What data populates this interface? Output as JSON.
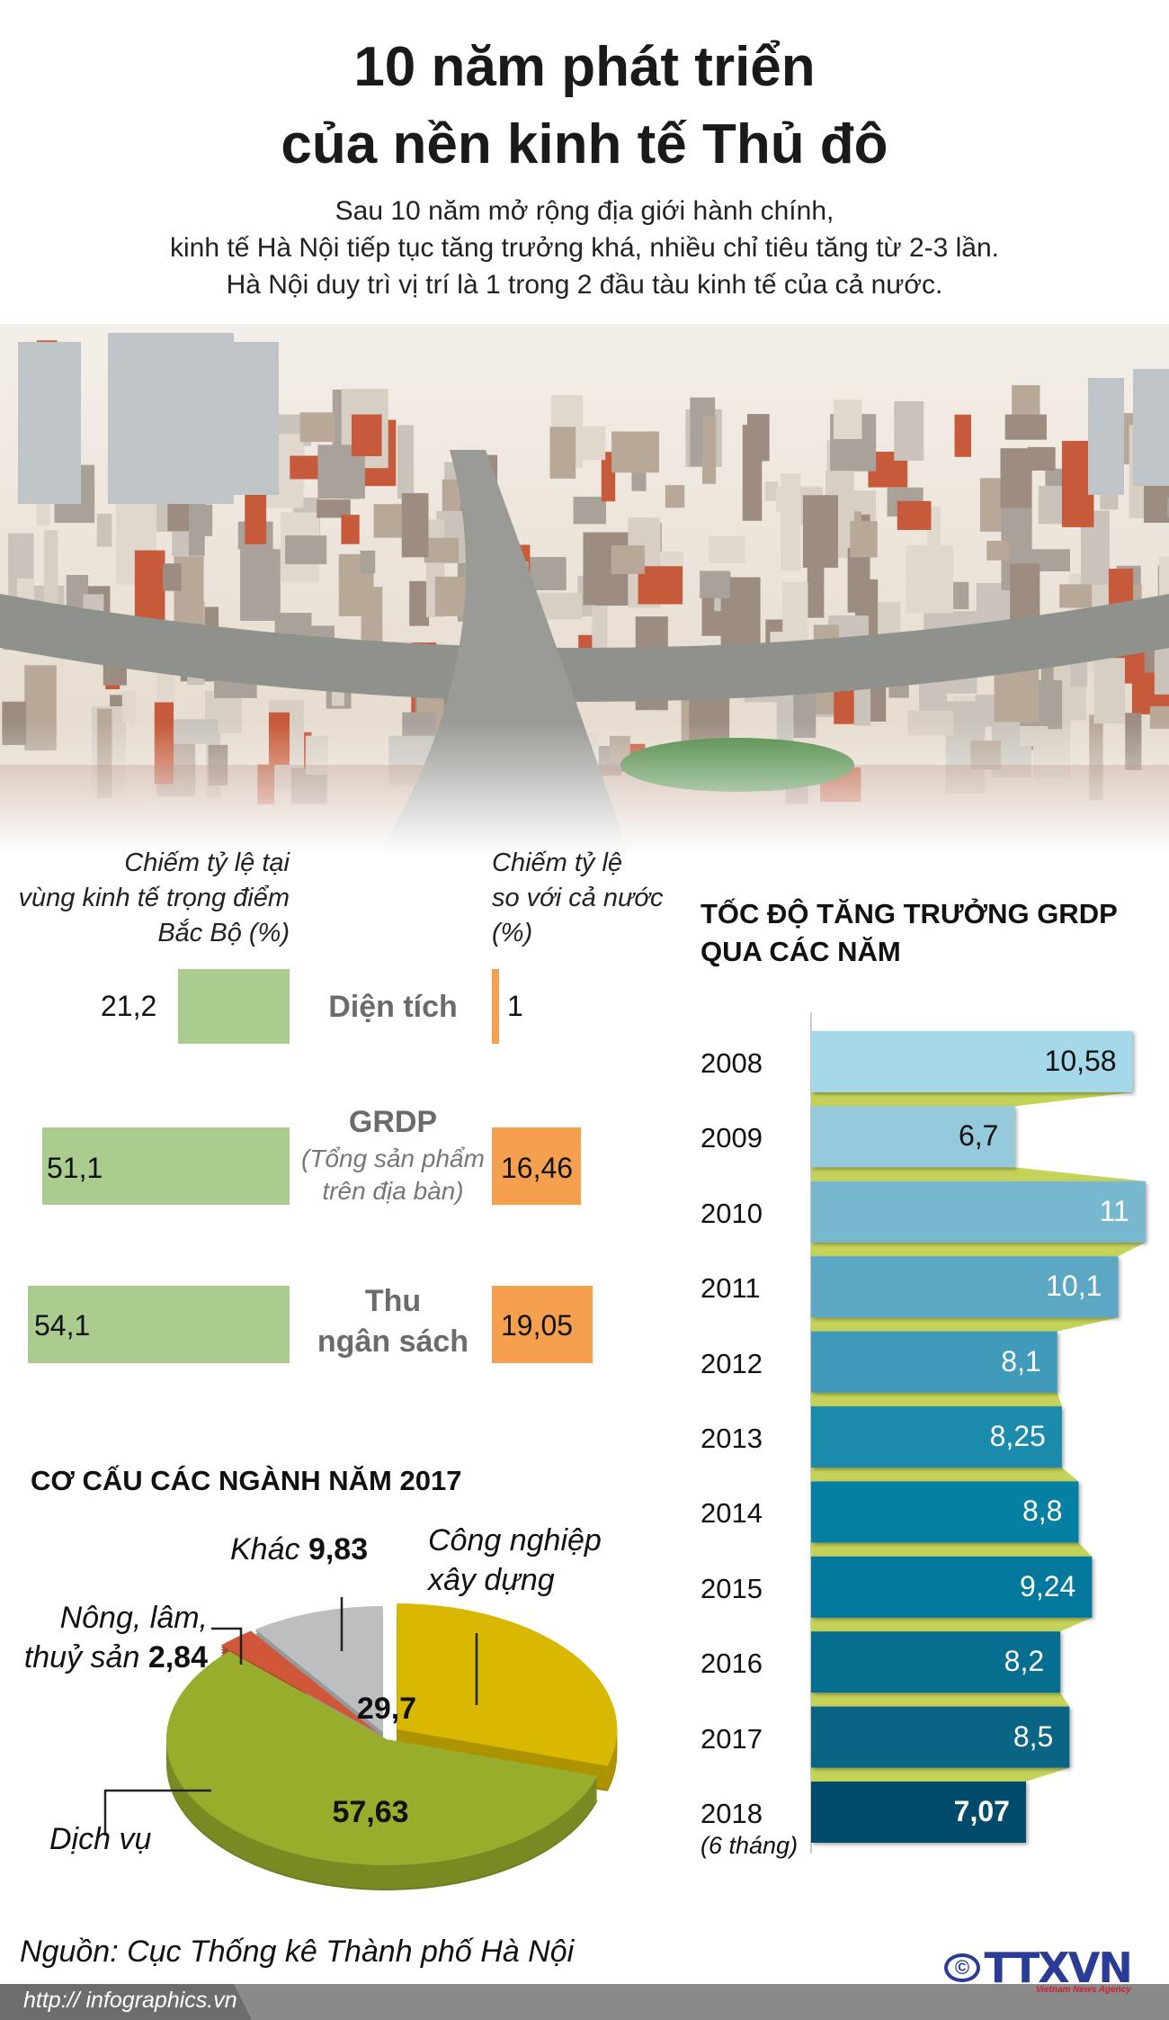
{
  "title": {
    "line1": "10 năm phát triển",
    "line2": "của nền kinh tế Thủ đô"
  },
  "subtitle": {
    "line1": "Sau 10 năm mở rộng địa giới hành chính,",
    "line2": "kinh tế Hà Nội tiếp tục tăng trưởng khá, nhiều chỉ tiêu tăng từ 2-3 lần.",
    "line3": "Hà Nội duy trì vị trí là 1 trong 2 đầu tàu kinh tế của cả nước."
  },
  "comparison": {
    "left_header": [
      "Chiếm tỷ lệ tại",
      "vùng kinh tế trọng điểm",
      "Bắc Bộ (%)"
    ],
    "right_header": [
      "Chiếm tỷ lệ",
      "so với cả nước",
      "(%)"
    ],
    "rows": [
      {
        "label": "Diện tích",
        "sub": "",
        "region": "21,2",
        "national": "1",
        "region_value": 21.2,
        "national_value": 1
      },
      {
        "label": "GRDP",
        "sub": [
          "(Tổng sản phẩm",
          "trên địa bàn)"
        ],
        "region": "51,1",
        "national": "16,46",
        "region_value": 51.1,
        "national_value": 16.46
      },
      {
        "label": [
          "Thu",
          "ngân sách"
        ],
        "sub": "",
        "region": "54,1",
        "national": "19,05",
        "region_value": 54.1,
        "national_value": 19.05
      }
    ],
    "colors": {
      "region": "#abcc8f",
      "national": "#f5a04e"
    }
  },
  "chart_data": [
    {
      "type": "bar",
      "orientation": "horizontal",
      "title": "TỐC ĐỘ TĂNG TRƯỞNG GRDP QUA CÁC NĂM",
      "title_lines": [
        "TỐC ĐỘ TĂNG TRƯỞNG GRDP",
        "QUA CÁC NĂM"
      ],
      "categories": [
        "2008",
        "2009",
        "2010",
        "2011",
        "2012",
        "2013",
        "2014",
        "2015",
        "2016",
        "2017",
        "2018"
      ],
      "category_note": {
        "2018": "(6 tháng)"
      },
      "values": [
        10.58,
        6.7,
        11,
        10.1,
        8.1,
        8.25,
        8.8,
        9.24,
        8.2,
        8.5,
        7.07
      ],
      "labels": [
        "10,58",
        "6,7",
        "11",
        "10,1",
        "8,1",
        "8,25",
        "8,8",
        "9,24",
        "8,2",
        "8,5",
        "7,07"
      ],
      "colors": [
        "#a5d9ea",
        "#94cadb",
        "#77b8cf",
        "#5ca7c3",
        "#409bba",
        "#1a8bab",
        "#0580a3",
        "#03789d",
        "#066f8f",
        "#0a6584",
        "#004a6c"
      ],
      "connector_color": "#c5d35a"
    },
    {
      "type": "pie",
      "title": "CƠ CẤU CÁC NGÀNH NĂM 2017",
      "slices": [
        {
          "name": "Công nghiệp xây dựng",
          "name_lines": [
            "Công nghiệp",
            "xây dựng"
          ],
          "value": 29.7,
          "label": "29,7",
          "color": "#d8b800"
        },
        {
          "name": "Dịch vụ",
          "value": 57.63,
          "label": "57,63",
          "color": "#98ad2c"
        },
        {
          "name": "Nông, lâm, thuỷ sản",
          "name_lines": [
            "Nông, lâm,",
            "thuỷ sản"
          ],
          "value": 2.84,
          "label": "2,84",
          "color": "#d0573a"
        },
        {
          "name": "Khác",
          "value": 9.83,
          "label": "9,83",
          "color": "#bcbec0"
        }
      ]
    }
  ],
  "source": "Nguồn: Cục Thống kê Thành phố Hà Nội",
  "footer": {
    "url": "http:// infographics.vn",
    "logo": "TTXVN",
    "logo_sub": "Vietnam News Agency",
    "copyright": "©"
  }
}
